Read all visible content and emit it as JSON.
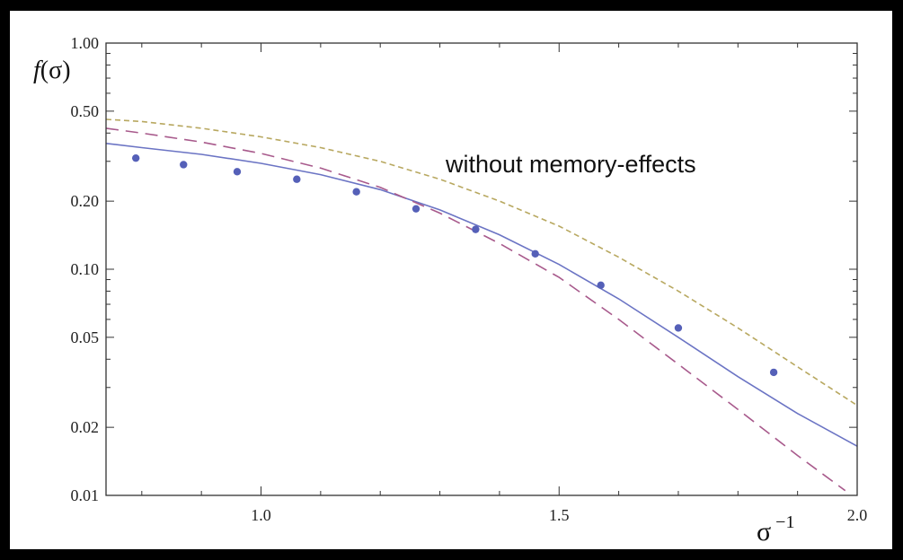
{
  "chart_data": {
    "type": "scatter",
    "xlabel": "σ",
    "xlabel_superscript": "−1",
    "ylabel_func": "f",
    "ylabel_arg": "(σ)",
    "annotation": "without memory-effects",
    "x_scale": "linear",
    "y_scale": "log",
    "xlim": [
      0.74,
      2.0
    ],
    "ylim": [
      0.01,
      1.0
    ],
    "x_ticks": [
      {
        "value": 1.0,
        "label": "1.0"
      },
      {
        "value": 1.5,
        "label": "1.5"
      },
      {
        "value": 2.0,
        "label": "2.0"
      }
    ],
    "y_ticks": [
      {
        "value": 1.0,
        "label": "1.00"
      },
      {
        "value": 0.5,
        "label": "0.50"
      },
      {
        "value": 0.2,
        "label": "0.20"
      },
      {
        "value": 0.1,
        "label": "0.10"
      },
      {
        "value": 0.05,
        "label": "0.05"
      },
      {
        "value": 0.02,
        "label": "0.02"
      },
      {
        "value": 0.01,
        "label": "0.01"
      }
    ],
    "grid": false,
    "colors": {
      "points": "#5560b8",
      "solid": "#6b74c4",
      "long_dashed": "#a85a8c",
      "short_dashed": "#b8a860",
      "frame": "#333333"
    },
    "series": [
      {
        "style": "points",
        "x": [
          0.79,
          0.87,
          0.96,
          1.06,
          1.16,
          1.26,
          1.36,
          1.46,
          1.57,
          1.7,
          1.86
        ],
        "y": [
          0.31,
          0.29,
          0.27,
          0.25,
          0.22,
          0.185,
          0.15,
          0.117,
          0.085,
          0.055,
          0.035
        ]
      },
      {
        "style": "solid",
        "x": [
          0.74,
          0.8,
          0.9,
          1.0,
          1.1,
          1.2,
          1.3,
          1.4,
          1.5,
          1.6,
          1.7,
          1.8,
          1.9,
          2.0
        ],
        "y": [
          0.36,
          0.345,
          0.322,
          0.294,
          0.262,
          0.225,
          0.183,
          0.142,
          0.105,
          0.074,
          0.05,
          0.0335,
          0.023,
          0.0165
        ]
      },
      {
        "style": "long_dashed",
        "x": [
          0.74,
          0.8,
          0.9,
          1.0,
          1.1,
          1.2,
          1.3,
          1.4,
          1.5,
          1.6,
          1.7,
          1.8,
          1.9,
          1.98
        ],
        "y": [
          0.42,
          0.4,
          0.365,
          0.325,
          0.28,
          0.23,
          0.177,
          0.13,
          0.092,
          0.06,
          0.038,
          0.024,
          0.015,
          0.0105
        ]
      },
      {
        "style": "short_dashed",
        "x": [
          0.74,
          0.8,
          0.9,
          1.0,
          1.1,
          1.2,
          1.3,
          1.4,
          1.5,
          1.6,
          1.7,
          1.8,
          1.9,
          2.0
        ],
        "y": [
          0.46,
          0.45,
          0.42,
          0.385,
          0.345,
          0.3,
          0.25,
          0.2,
          0.155,
          0.113,
          0.08,
          0.055,
          0.037,
          0.025
        ]
      }
    ]
  }
}
